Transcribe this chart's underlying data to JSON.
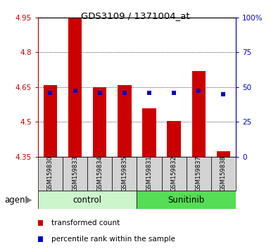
{
  "title": "GDS3109 / 1371004_at",
  "samples": [
    "GSM159830",
    "GSM159833",
    "GSM159834",
    "GSM159835",
    "GSM159831",
    "GSM159832",
    "GSM159837",
    "GSM159838"
  ],
  "bar_tops": [
    4.66,
    4.95,
    4.65,
    4.66,
    4.56,
    4.505,
    4.72,
    4.375
  ],
  "bar_bottom": 4.35,
  "percentile_values": [
    4.625,
    4.635,
    4.625,
    4.625,
    4.625,
    4.625,
    4.635,
    4.62
  ],
  "ylim_left": [
    4.35,
    4.95
  ],
  "ylim_right": [
    0,
    100
  ],
  "yticks_left": [
    4.35,
    4.5,
    4.65,
    4.8,
    4.95
  ],
  "yticks_right": [
    0,
    25,
    50,
    75,
    100
  ],
  "ytick_labels_left": [
    "4.35",
    "4.5",
    "4.65",
    "4.8",
    "4.95"
  ],
  "ytick_labels_right": [
    "0",
    "25",
    "50",
    "75",
    "100%"
  ],
  "bar_color": "#cc0000",
  "percentile_color": "#0000cc",
  "n_control": 4,
  "n_sunitinib": 4,
  "control_label": "control",
  "sunitinib_label": "Sunitinib",
  "agent_label": "agent",
  "control_bg": "#ccf5cc",
  "sunitinib_bg": "#55dd55",
  "xlabel_bg": "#d3d3d3",
  "bar_width": 0.55,
  "legend_red": "transformed count",
  "legend_blue": "percentile rank within the sample"
}
